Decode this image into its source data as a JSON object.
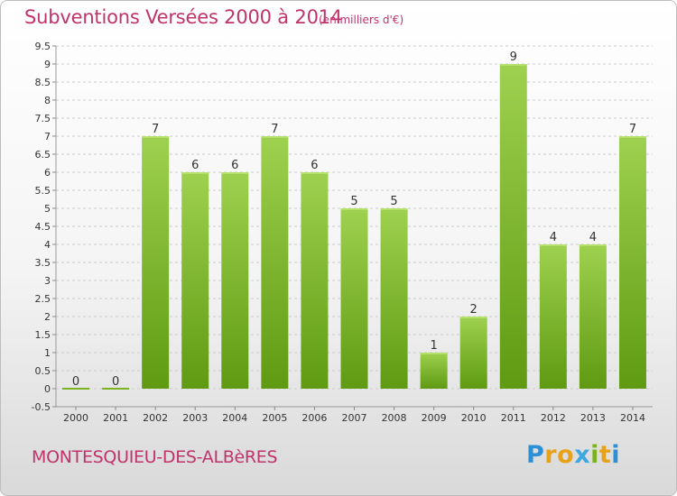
{
  "title": "Subventions Versées 2000 à 2014",
  "unit_note": "(en milliers d'€)",
  "commune": "MONTESQUIEU-DES-ALBèRES",
  "brand": {
    "letters": [
      "P",
      "r",
      "o",
      "x",
      "i",
      "t",
      "i"
    ],
    "colors": [
      "#2d8fd6",
      "#e8a21a",
      "#e8a21a",
      "#3fa7e0",
      "#7ab31f",
      "#e8a21a",
      "#2d8fd6"
    ]
  },
  "colors": {
    "bar_top": "#9ed14f",
    "bar_bottom": "#5f9a12",
    "grid": "#cccccc",
    "axis_text": "#333333",
    "accent": "#c0336b"
  },
  "chart_data": {
    "type": "bar",
    "categories": [
      "2000",
      "2001",
      "2002",
      "2003",
      "2004",
      "2005",
      "2006",
      "2007",
      "2008",
      "2009",
      "2010",
      "2011",
      "2012",
      "2013",
      "2014"
    ],
    "values": [
      0,
      0,
      7,
      6,
      6,
      7,
      6,
      5,
      5,
      1,
      2,
      9,
      4,
      4,
      7
    ],
    "value_labels": [
      "0",
      "0",
      "7",
      "6",
      "6",
      "7",
      "6",
      "5",
      "5",
      "1",
      "2",
      "9",
      "4",
      "4",
      "7"
    ],
    "y_ticks": [
      "-0.5",
      "0",
      "0.5",
      "1",
      "1.5",
      "2",
      "2.5",
      "3",
      "3.5",
      "4",
      "4.5",
      "5",
      "5.5",
      "6",
      "6.5",
      "7",
      "7.5",
      "8",
      "8.5",
      "9",
      "9.5"
    ],
    "ylim": [
      -0.5,
      9.5
    ],
    "grid": true,
    "title": "Subventions Versées 2000 à 2014",
    "xlabel": "",
    "ylabel": ""
  }
}
